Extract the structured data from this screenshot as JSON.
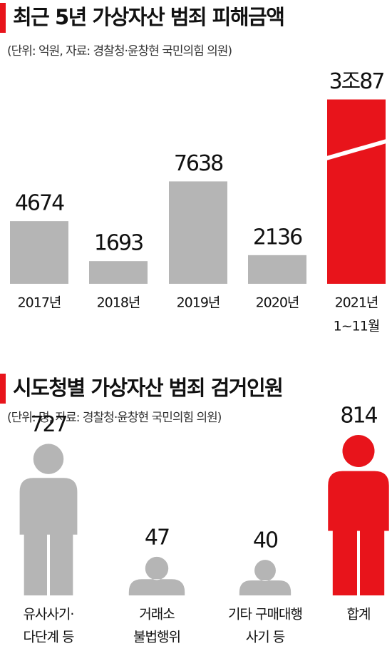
{
  "chart_data": [
    {
      "type": "bar",
      "title": "최근 5년 가상자산 범죄 피해금액",
      "subtitle": "(단위: 억원, 자료: 경찰청·윤창현 국민의힘 의원)",
      "categories": [
        [
          "2017년"
        ],
        [
          "2018년"
        ],
        [
          "2019년"
        ],
        [
          "2020년"
        ],
        [
          "2021년",
          "1~11월"
        ]
      ],
      "values": [
        4674,
        1693,
        7638,
        2136,
        30087
      ],
      "value_labels": [
        "4674",
        "1693",
        "7638",
        "2136",
        "3조87"
      ],
      "colors": [
        "#b5b5b5",
        "#b5b5b5",
        "#b5b5b5",
        "#b5b5b5",
        "#e8141b"
      ]
    },
    {
      "type": "pictogram",
      "title": "시도청별 가상자산 범죄 검거인원",
      "subtitle": "(단위: 명, 자료: 경찰청·윤창현 국민의힘 의원)",
      "categories": [
        [
          "유사사기·",
          "다단계 등"
        ],
        [
          "거래소",
          "불법행위"
        ],
        [
          "기타 구매대행",
          "사기 등"
        ],
        [
          "합계"
        ]
      ],
      "values": [
        727,
        47,
        40,
        814
      ],
      "colors": [
        "#b5b5b5",
        "#b5b5b5",
        "#b5b5b5",
        "#e8141b"
      ]
    }
  ]
}
